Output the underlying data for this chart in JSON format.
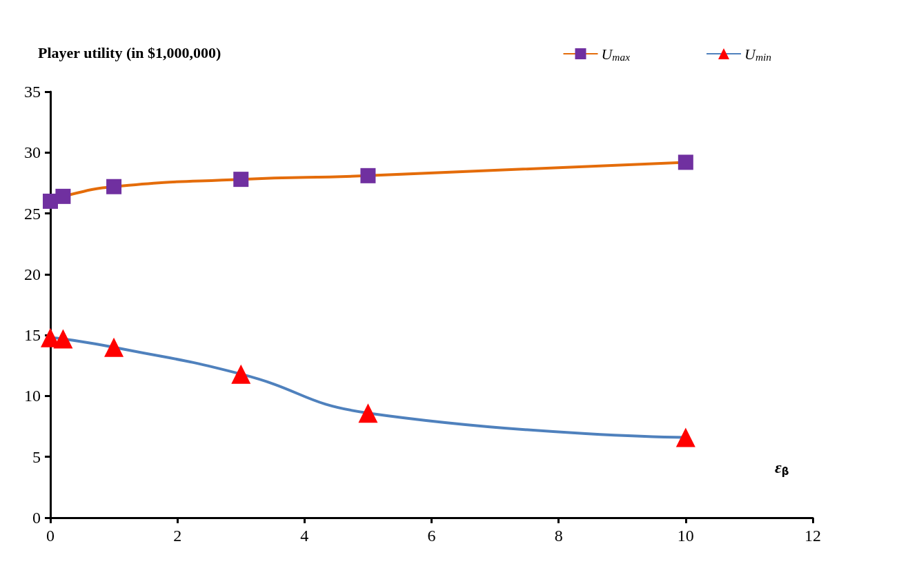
{
  "chart_data": {
    "type": "line",
    "title": "Player utility (in $1,000,000)",
    "xlabel": "ε$_{β}$",
    "xlim": [
      0,
      12
    ],
    "xticks": [
      0,
      2,
      4,
      6,
      8,
      10,
      12
    ],
    "ylim": [
      0,
      35
    ],
    "yticks": [
      0,
      5,
      10,
      15,
      20,
      25,
      30,
      35
    ],
    "grid": false,
    "legend": "top right",
    "line_style": "solid",
    "series": [
      {
        "name": "U$_{max}$",
        "color": "#e46c0a",
        "colors": [
          "#7030a0",
          "#7030a0",
          "#7030a0",
          "#7030a0",
          "#7030a0",
          "#7030a0"
        ],
        "marker": "square",
        "x": [
          0,
          0.2,
          1,
          3,
          5,
          10
        ],
        "values": [
          26,
          26.4,
          27.2,
          27.8,
          28.1,
          29.2
        ]
      },
      {
        "name": "U$_{min}$",
        "color": "#4f81bd",
        "colors": [
          "#ff0000",
          "#ff0000",
          "#ff0000",
          "#ff0000",
          "#ff0000",
          "#ff0000"
        ],
        "marker": "triangle",
        "x": [
          0,
          0.2,
          1,
          3,
          5,
          10
        ],
        "values": [
          14.8,
          14.7,
          14,
          11.8,
          8.6,
          6.6
        ]
      }
    ]
  }
}
